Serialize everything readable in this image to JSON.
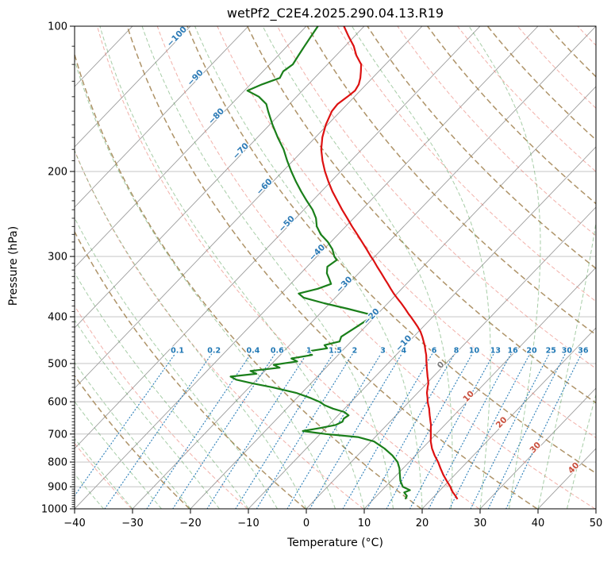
{
  "title": "wetPf2_C2E4.2025.290.04.13.R19",
  "axes": {
    "x_label": "Temperature (°C)",
    "y_label": "Pressure (hPa)"
  },
  "chart_data": {
    "type": "line",
    "subtype": "skew-t-log-p-sounding",
    "title": "wetPf2_C2E4.2025.290.04.13.R19",
    "xlabel": "Temperature (°C)",
    "ylabel": "Pressure (hPa)",
    "x_range_C": [
      -40,
      50
    ],
    "pressure_range_hPa": [
      100,
      1000
    ],
    "skew_C_per_decade": 80,
    "grid": true,
    "x_tick_values": [
      -40,
      -30,
      -20,
      -10,
      0,
      10,
      20,
      30,
      40,
      50
    ],
    "x_tick_labels": [
      "−40",
      "−30",
      "−20",
      "−10",
      "0",
      "10",
      "20",
      "30",
      "40",
      "50"
    ],
    "y_tick_values": [
      100,
      200,
      300,
      400,
      500,
      600,
      700,
      800,
      900,
      1000
    ],
    "y_tick_labels": [
      "100",
      "200",
      "300",
      "400",
      "500",
      "600",
      "700",
      "800",
      "900",
      "1000"
    ],
    "pressure_hPa": [
      955,
      940,
      925,
      915,
      900,
      875,
      850,
      825,
      800,
      775,
      750,
      725,
      710,
      700,
      690,
      680,
      670,
      660,
      650,
      640,
      630,
      620,
      610,
      600,
      590,
      575,
      560,
      550,
      540,
      532,
      525,
      518,
      510,
      503,
      495,
      488,
      480,
      472,
      465,
      458,
      450,
      440,
      430,
      420,
      410,
      400,
      395,
      385,
      375,
      365,
      358,
      350,
      342,
      335,
      325,
      315,
      305,
      300,
      290,
      280,
      270,
      260,
      250,
      240,
      230,
      220,
      210,
      200,
      190,
      180,
      170,
      160,
      150,
      145,
      140,
      136,
      132,
      128,
      124,
      120,
      115,
      110,
      105,
      100
    ],
    "series": [
      {
        "name": "temperature",
        "color": "#dd1111",
        "values_C": [
          24.5,
          23.6,
          22.6,
          22.0,
          21.2,
          19.6,
          18.0,
          16.5,
          15.0,
          13.3,
          11.7,
          10.3,
          9.6,
          9.1,
          8.6,
          8.1,
          7.6,
          7.0,
          6.4,
          5.8,
          5.2,
          4.6,
          3.9,
          3.2,
          2.6,
          1.6,
          0.8,
          0.3,
          -0.4,
          -1.0,
          -1.5,
          -2.0,
          -2.6,
          -3.1,
          -3.7,
          -4.2,
          -4.8,
          -5.5,
          -6.1,
          -6.7,
          -7.5,
          -8.5,
          -9.6,
          -10.9,
          -12.3,
          -13.8,
          -14.6,
          -16.1,
          -17.7,
          -19.4,
          -20.6,
          -21.9,
          -23.2,
          -24.4,
          -26.1,
          -27.9,
          -29.7,
          -30.7,
          -32.6,
          -34.6,
          -36.7,
          -38.9,
          -41.1,
          -43.4,
          -45.7,
          -48.1,
          -50.4,
          -52.7,
          -54.9,
          -57.0,
          -58.8,
          -60.3,
          -61.5,
          -61.7,
          -61.2,
          -60.9,
          -61.3,
          -62.1,
          -63.1,
          -64.2,
          -66.5,
          -68.5,
          -71.0,
          -73.5
        ]
      },
      {
        "name": "dewpoint",
        "color": "#1a7f1a",
        "values_C": [
          15.5,
          15.2,
          14.2,
          14.8,
          13.0,
          11.6,
          10.5,
          9.4,
          8.0,
          6.0,
          3.5,
          0.5,
          -3.0,
          -9.0,
          -13.5,
          -11.0,
          -8.8,
          -8.2,
          -8.5,
          -8.2,
          -9.5,
          -12.0,
          -14.0,
          -15.5,
          -17.5,
          -21.0,
          -26.0,
          -30.0,
          -33.5,
          -35.0,
          -31.0,
          -32.5,
          -28.0,
          -29.5,
          -26.0,
          -27.5,
          -24.5,
          -26.0,
          -23.0,
          -24.0,
          -22.0,
          -22.5,
          -22.0,
          -21.5,
          -21.0,
          -20.5,
          -21.5,
          -26.0,
          -31.0,
          -35.5,
          -37.0,
          -34.5,
          -33.0,
          -34.0,
          -35.5,
          -36.5,
          -36.0,
          -37.0,
          -38.5,
          -40.5,
          -43.0,
          -45.0,
          -46.5,
          -48.5,
          -51.0,
          -53.5,
          -56.0,
          -58.5,
          -61.0,
          -63.5,
          -66.5,
          -69.5,
          -72.5,
          -74.0,
          -76.5,
          -79.5,
          -78.0,
          -76.0,
          -76.5,
          -76.0,
          -76.5,
          -77.0,
          -77.5,
          -78.0
        ]
      }
    ],
    "background": {
      "isotherms": {
        "min": -120,
        "max": 50,
        "step": 10,
        "color": "#9c9c9c"
      },
      "dry_adiabats": {
        "min": 233,
        "max": 533,
        "step": 10,
        "color_tan": "rgba(160,128,78,0.85)",
        "color_salmon": "rgba(230,100,85,0.5)"
      },
      "moist_adiabats": {
        "min": -40,
        "max": 45,
        "step": 5,
        "color": "rgba(60,145,60,0.45)"
      },
      "mixing_ratios": {
        "values": [
          0.1,
          0.2,
          0.4,
          0.6,
          1,
          1.5,
          2,
          3,
          4,
          6,
          8,
          10,
          13,
          16,
          20,
          25,
          30,
          36
        ],
        "labels": [
          "0.1",
          "0.2",
          "0.4",
          "0.6",
          "1",
          "1.5",
          "2",
          "3",
          "4",
          "6",
          "8",
          "10",
          "13",
          "16",
          "20",
          "25",
          "30",
          "36"
        ],
        "label_pressure": 470,
        "top_pressure": 478,
        "color": "rgba(31,119,180,0.9)",
        "label_color": "#1f77b4"
      },
      "isotherm_labels": [
        {
          "label": "−100",
          "t": -100,
          "p": 106
        },
        {
          "label": "−90",
          "t": -90,
          "p": 129
        },
        {
          "label": "−80",
          "t": -80,
          "p": 155
        },
        {
          "label": "−70",
          "t": -70,
          "p": 183
        },
        {
          "label": "−60",
          "t": -60,
          "p": 217
        },
        {
          "label": "−50",
          "t": -50,
          "p": 259
        },
        {
          "label": "−40",
          "t": -40,
          "p": 297
        },
        {
          "label": "−30",
          "t": -30,
          "p": 346
        },
        {
          "label": "−20",
          "t": -20,
          "p": 403
        },
        {
          "label": "−10",
          "t": -10,
          "p": 458
        },
        {
          "label": "0",
          "t": 0,
          "p": 508
        },
        {
          "label": "10",
          "t": 10,
          "p": 590
        },
        {
          "label": "20",
          "t": 20,
          "p": 668
        },
        {
          "label": "30",
          "t": 30,
          "p": 753
        },
        {
          "label": "40",
          "t": 40,
          "p": 830
        }
      ],
      "label_colors": {
        "neg": "#2d7bb6",
        "zero": "#7a7a7a",
        "pos": "#c9503e"
      }
    }
  }
}
